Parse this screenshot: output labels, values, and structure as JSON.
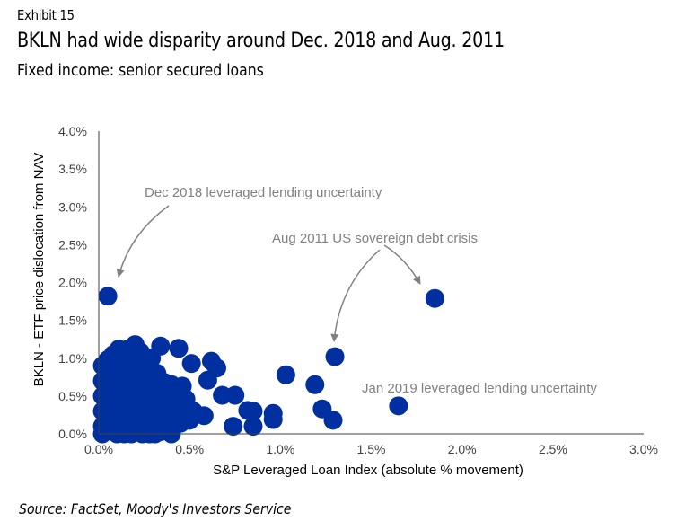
{
  "header": {
    "exhibit": "Exhibit 15",
    "title": "BKLN had wide disparity around Dec. 2018 and Aug. 2011",
    "subtitle": "Fixed income: senior secured loans"
  },
  "footer": {
    "source": "Source: FactSet, Moody's Investors Service"
  },
  "colors": {
    "points": "#002FA0",
    "annotation": "#808080",
    "axis": "#404040"
  },
  "chart_data": {
    "type": "scatter",
    "title": "BKLN had wide disparity around Dec. 2018 and Aug. 2011",
    "xlabel": "S&P Leveraged Loan Index (absolute % movement)",
    "ylabel": "BKLN - ETF price dislocation from NAV",
    "xlim": [
      0,
      3.0
    ],
    "ylim": [
      0,
      4.0
    ],
    "x_ticks": [
      "0.0%",
      "0.5%",
      "1.0%",
      "1.5%",
      "2.0%",
      "2.5%",
      "3.0%"
    ],
    "y_ticks": [
      "0.0%",
      "0.5%",
      "1.0%",
      "1.5%",
      "2.0%",
      "2.5%",
      "3.0%",
      "3.5%",
      "4.0%"
    ],
    "x_tick_values": [
      0,
      0.5,
      1.0,
      1.5,
      2.0,
      2.5,
      3.0
    ],
    "y_tick_values": [
      0,
      0.5,
      1.0,
      1.5,
      2.0,
      2.5,
      3.0,
      3.5,
      4.0
    ],
    "grid": false,
    "legend": "none",
    "points": [
      [
        0.05,
        1.82
      ],
      [
        1.85,
        1.79
      ],
      [
        1.3,
        1.02
      ],
      [
        1.65,
        0.37
      ],
      [
        1.03,
        0.78
      ],
      [
        1.19,
        0.65
      ],
      [
        1.23,
        0.33
      ],
      [
        1.29,
        0.18
      ],
      [
        0.96,
        0.27
      ],
      [
        0.96,
        0.19
      ],
      [
        0.85,
        0.3
      ],
      [
        0.85,
        0.1
      ],
      [
        0.74,
        0.1
      ],
      [
        0.82,
        0.31
      ],
      [
        0.75,
        0.51
      ],
      [
        0.68,
        0.51
      ],
      [
        0.65,
        0.87
      ],
      [
        0.62,
        0.96
      ],
      [
        0.6,
        0.71
      ],
      [
        0.51,
        0.93
      ],
      [
        0.44,
        1.13
      ],
      [
        0.34,
        1.16
      ],
      [
        0.58,
        0.24
      ],
      [
        0.36,
        0.68
      ],
      [
        0.46,
        0.63
      ],
      [
        0.48,
        0.46
      ],
      [
        0.52,
        0.3
      ],
      [
        0.45,
        0.14
      ],
      [
        0.5,
        0.18
      ],
      [
        0.05,
        0.98
      ],
      [
        0.11,
        1.12
      ],
      [
        0.2,
        1.18
      ],
      [
        0.16,
        1.12
      ],
      [
        0.08,
        1.05
      ],
      [
        0.02,
        0.9
      ],
      [
        0.02,
        0.7
      ],
      [
        0.02,
        0.5
      ],
      [
        0.02,
        0.3
      ],
      [
        0.02,
        0.1
      ],
      [
        0.02,
        0.0
      ],
      [
        0.08,
        0.85
      ],
      [
        0.08,
        0.65
      ],
      [
        0.08,
        0.45
      ],
      [
        0.08,
        0.25
      ],
      [
        0.08,
        0.05
      ],
      [
        0.14,
        0.95
      ],
      [
        0.14,
        0.75
      ],
      [
        0.14,
        0.55
      ],
      [
        0.14,
        0.35
      ],
      [
        0.14,
        0.15
      ],
      [
        0.14,
        0.0
      ],
      [
        0.2,
        1.0
      ],
      [
        0.2,
        0.8
      ],
      [
        0.2,
        0.6
      ],
      [
        0.2,
        0.4
      ],
      [
        0.2,
        0.2
      ],
      [
        0.2,
        0.02
      ],
      [
        0.26,
        0.92
      ],
      [
        0.26,
        0.72
      ],
      [
        0.26,
        0.52
      ],
      [
        0.26,
        0.32
      ],
      [
        0.26,
        0.12
      ],
      [
        0.28,
        0.0
      ],
      [
        0.32,
        0.8
      ],
      [
        0.32,
        0.6
      ],
      [
        0.32,
        0.4
      ],
      [
        0.32,
        0.2
      ],
      [
        0.34,
        0.03
      ],
      [
        0.38,
        0.5
      ],
      [
        0.38,
        0.3
      ],
      [
        0.38,
        0.12
      ],
      [
        0.4,
        0.0
      ],
      [
        0.42,
        0.4
      ],
      [
        0.42,
        0.22
      ],
      [
        0.29,
        1.0
      ],
      [
        0.23,
        1.08
      ],
      [
        0.11,
        0.92
      ],
      [
        0.05,
        0.78
      ],
      [
        0.05,
        0.58
      ],
      [
        0.05,
        0.38
      ],
      [
        0.05,
        0.18
      ],
      [
        0.11,
        0.7
      ],
      [
        0.11,
        0.5
      ],
      [
        0.11,
        0.3
      ],
      [
        0.11,
        0.1
      ],
      [
        0.17,
        0.65
      ],
      [
        0.17,
        0.45
      ],
      [
        0.17,
        0.25
      ],
      [
        0.17,
        0.08
      ],
      [
        0.23,
        0.7
      ],
      [
        0.23,
        0.5
      ],
      [
        0.23,
        0.28
      ],
      [
        0.23,
        0.1
      ],
      [
        0.3,
        0.45
      ],
      [
        0.3,
        0.28
      ],
      [
        0.35,
        0.15
      ],
      [
        0.44,
        0.58
      ],
      [
        0.4,
        0.65
      ],
      [
        0.47,
        0.35
      ],
      [
        0.53,
        0.25
      ],
      [
        0.1,
        0.0
      ],
      [
        0.18,
        0.0
      ],
      [
        0.24,
        0.0
      ],
      [
        0.31,
        0.0
      ]
    ],
    "annotations": [
      {
        "text": "Dec 2018 leveraged lending uncertainty",
        "target": [
          0.05,
          1.82
        ]
      },
      {
        "text": "Aug 2011 US sovereign debt crisis",
        "targets": [
          [
            1.3,
            1.02
          ],
          [
            1.85,
            1.79
          ]
        ]
      },
      {
        "text": "Jan 2019 leveraged lending uncertainty",
        "target": [
          1.65,
          0.37
        ]
      }
    ]
  }
}
